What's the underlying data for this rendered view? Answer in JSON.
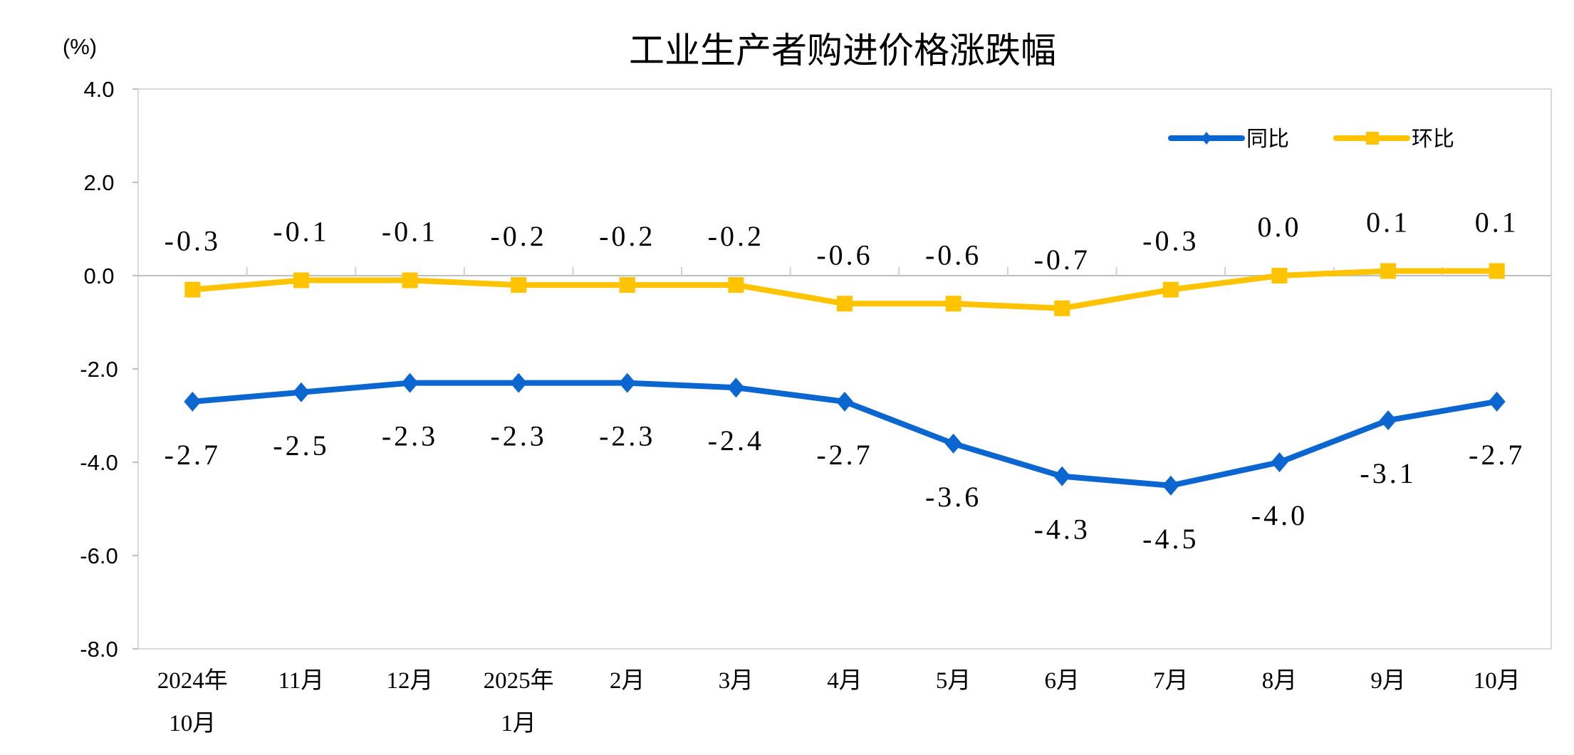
{
  "chart_data": {
    "type": "line",
    "title": "工业生产者购进价格涨跌幅",
    "ylabel": "(%)",
    "xlabel": "",
    "ylim": [
      -8.0,
      4.0
    ],
    "yticks": [
      "4.0",
      "2.0",
      "0.0",
      "-2.0",
      "-4.0",
      "-6.0",
      "-8.0"
    ],
    "ytick_values": [
      4,
      2,
      0,
      -2,
      -4,
      -6,
      -8
    ],
    "categories": [
      [
        "2024年",
        "10月"
      ],
      [
        "11月"
      ],
      [
        "12月"
      ],
      [
        "2025年",
        "1月"
      ],
      [
        "2月"
      ],
      [
        "3月"
      ],
      [
        "4月"
      ],
      [
        "5月"
      ],
      [
        "6月"
      ],
      [
        "7月"
      ],
      [
        "8月"
      ],
      [
        "9月"
      ],
      [
        "10月"
      ]
    ],
    "grid": false,
    "legend_position": "top-right",
    "series": [
      {
        "name": "同比",
        "color": "#0B66D0",
        "marker": "diamond",
        "label_position": "below",
        "values": [
          -2.7,
          -2.5,
          -2.3,
          -2.3,
          -2.3,
          -2.4,
          -2.7,
          -3.6,
          -4.3,
          -4.5,
          -4.0,
          -3.1,
          -2.7
        ],
        "labels": [
          "-2.7",
          "-2.5",
          "-2.3",
          "-2.3",
          "-2.3",
          "-2.4",
          "-2.7",
          "-3.6",
          "-4.3",
          "-4.5",
          "-4.0",
          "-3.1",
          "-2.7"
        ]
      },
      {
        "name": "环比",
        "color": "#FFC300",
        "marker": "square",
        "label_position": "above",
        "values": [
          -0.3,
          -0.1,
          -0.1,
          -0.2,
          -0.2,
          -0.2,
          -0.6,
          -0.6,
          -0.7,
          -0.3,
          0.0,
          0.1,
          0.1
        ],
        "labels": [
          "-0.3",
          "-0.1",
          "-0.1",
          "-0.2",
          "-0.2",
          "-0.2",
          "-0.6",
          "-0.6",
          "-0.7",
          "-0.3",
          "0.0",
          "0.1",
          "0.1"
        ]
      }
    ]
  }
}
